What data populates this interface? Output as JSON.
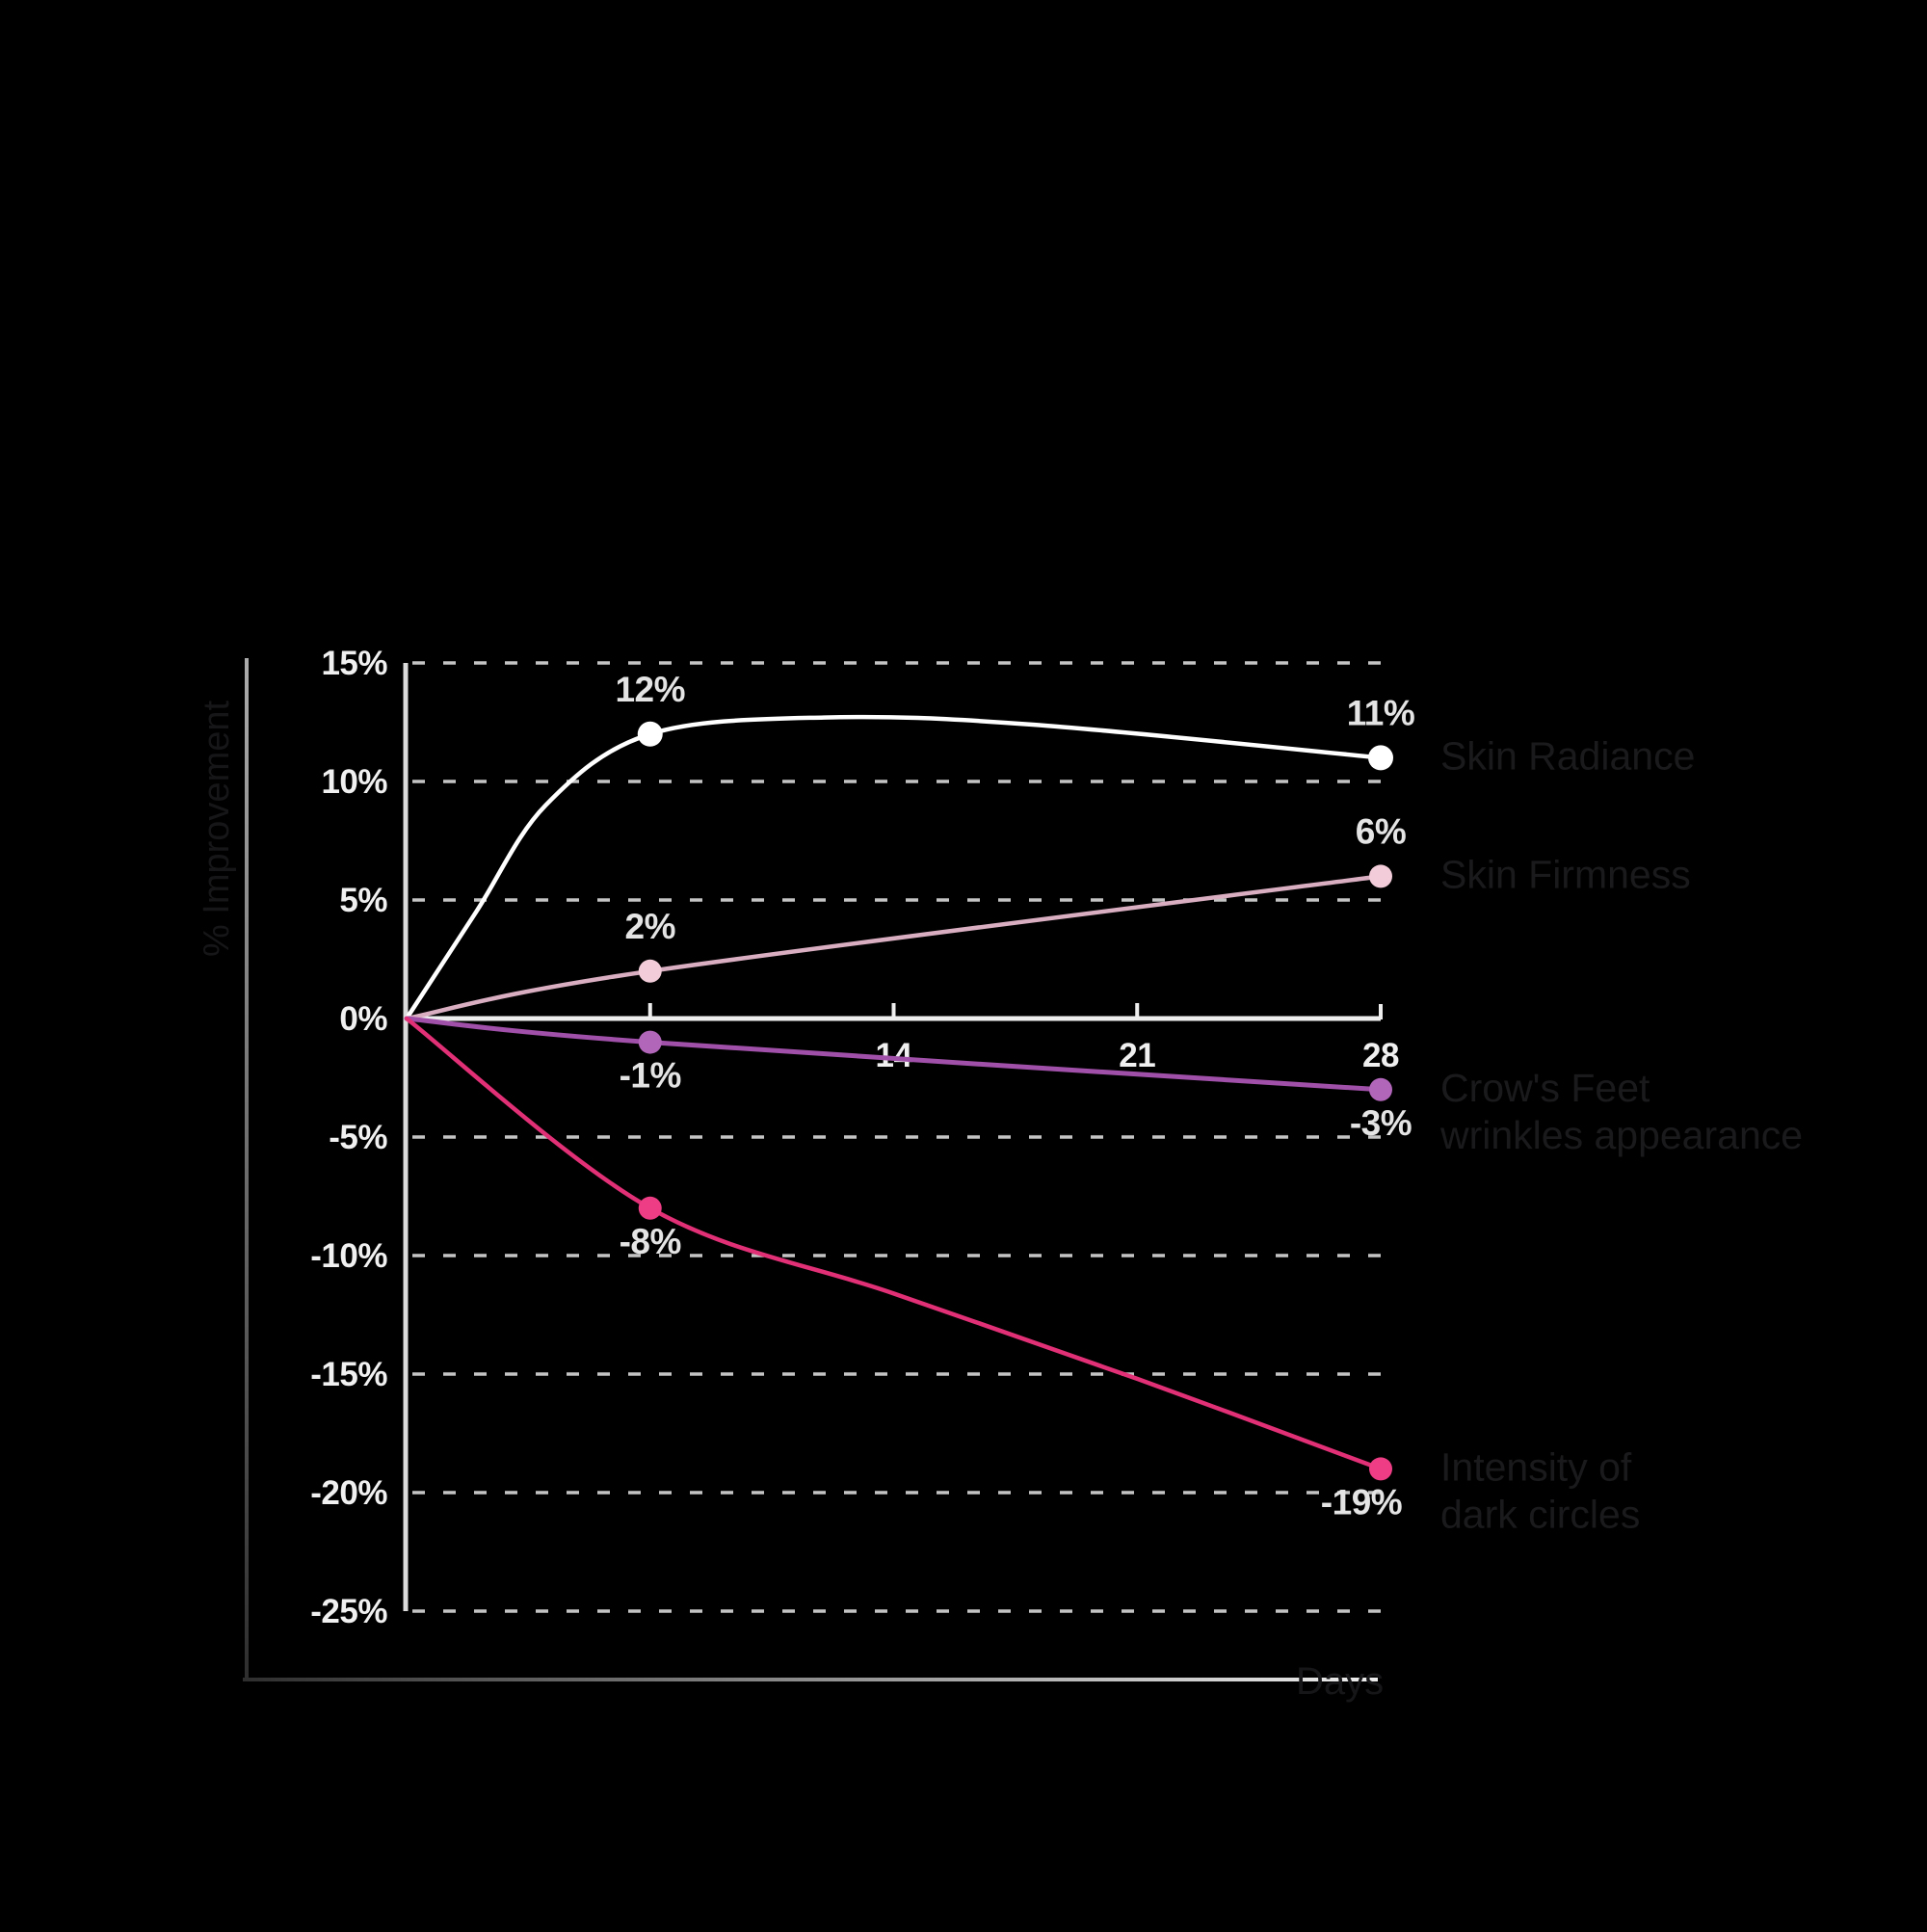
{
  "chart_data": {
    "type": "line",
    "title": "",
    "xlabel": "Days",
    "ylabel": "% Improvement",
    "xlim": [
      0,
      28
    ],
    "ylim": [
      -25,
      15
    ],
    "grid": "horizontal-dashed",
    "legend_position": "right",
    "y_ticks": [
      {
        "value": 15,
        "label": "15%"
      },
      {
        "value": 10,
        "label": "10%"
      },
      {
        "value": 5,
        "label": "5%"
      },
      {
        "value": 0,
        "label": "0%"
      },
      {
        "value": -5,
        "label": "-5%"
      },
      {
        "value": -10,
        "label": "-10%"
      },
      {
        "value": -15,
        "label": "-15%"
      },
      {
        "value": -20,
        "label": "-20%"
      },
      {
        "value": -25,
        "label": "-25%"
      }
    ],
    "x_tick_labels": [
      {
        "day": 14,
        "label": "14"
      },
      {
        "day": 21,
        "label": "21"
      },
      {
        "day": 28,
        "label": "28"
      }
    ],
    "x_tick_marks_days": [
      7,
      14,
      21,
      28
    ],
    "series": [
      {
        "id": "skin-radiance",
        "name_lines": [
          "Skin Radiance"
        ],
        "color": "#ffffff",
        "dot_color": "#ffffff",
        "x": [
          0,
          2,
          4,
          7,
          12,
          18,
          28
        ],
        "y": [
          0,
          4.5,
          9,
          12,
          12.7,
          12.4,
          11
        ],
        "markers": [
          {
            "day": 7,
            "value": 12,
            "label": "12%"
          },
          {
            "day": 28,
            "value": 11,
            "label": "11%"
          }
        ]
      },
      {
        "id": "skin-firmness",
        "name_lines": [
          "Skin Firmness"
        ],
        "color": "#d9aec1",
        "dot_color": "#f2cdd9",
        "x": [
          0,
          7,
          28
        ],
        "y": [
          0,
          2,
          6
        ],
        "markers": [
          {
            "day": 7,
            "value": 2,
            "label": "2%"
          },
          {
            "day": 28,
            "value": 6,
            "label": "6%"
          }
        ]
      },
      {
        "id": "crows-feet",
        "name_lines": [
          "Crow's Feet",
          "wrinkles appearance"
        ],
        "color": "#a050a8",
        "dot_color": "#b266ba",
        "x": [
          0,
          7,
          28
        ],
        "y": [
          0,
          -1,
          -3
        ],
        "markers": [
          {
            "day": 7,
            "value": -1,
            "label": "-1%"
          },
          {
            "day": 28,
            "value": -3,
            "label": "-3%"
          }
        ]
      },
      {
        "id": "dark-circles",
        "name_lines": [
          "Intensity of",
          "dark circles"
        ],
        "color": "#e23077",
        "dot_color": "#ee3d85",
        "x": [
          0,
          7,
          14,
          21,
          28
        ],
        "y": [
          0,
          -8,
          -11.6,
          -15.2,
          -19
        ],
        "markers": [
          {
            "day": 7,
            "value": -8,
            "label": "-8%"
          },
          {
            "day": 28,
            "value": -19,
            "label": "-19%",
            "dx": -20
          }
        ]
      }
    ],
    "colors": {
      "background": "#000000",
      "grid": "#c4c4c4",
      "axis": "#ededed",
      "y_axis": "#dcdcdc",
      "tick_text": "#f0f0f0",
      "value_text": "#e4e4e4",
      "legend_text": "#1a1a1c",
      "axis_title_text": "#161618",
      "frame_dark": "#2e2e2e",
      "frame_light": "#ababab"
    }
  }
}
